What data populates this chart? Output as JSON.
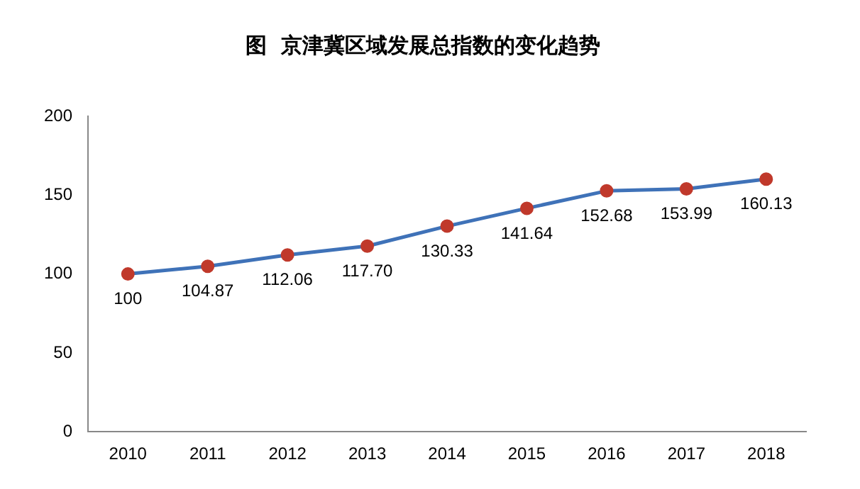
{
  "chart_data": {
    "type": "line",
    "title": "图  京津冀区域发展总指数的变化趋势",
    "categories": [
      "2010",
      "2011",
      "2012",
      "2013",
      "2014",
      "2015",
      "2016",
      "2017",
      "2018"
    ],
    "series": [
      {
        "color": "#3f72b8",
        "values": [
          100,
          104.87,
          112.06,
          117.7,
          130.33,
          141.64,
          152.68,
          153.99,
          160.13
        ],
        "colors": [
          "#c0392b",
          "#c0392b",
          "#c0392b",
          "#c0392b",
          "#c0392b",
          "#c0392b",
          "#c0392b",
          "#c0392b",
          "#c0392b"
        ],
        "value_labels": [
          "100",
          "104.87",
          "112.06",
          "117.70",
          "130.33",
          "141.64",
          "152.68",
          "153.99",
          "160.13"
        ]
      }
    ],
    "marker": "circle",
    "ylim": [
      0,
      200
    ],
    "yticks": [
      0,
      50,
      100,
      150,
      200
    ],
    "grid": false,
    "legend": false,
    "line_style": "solid"
  }
}
